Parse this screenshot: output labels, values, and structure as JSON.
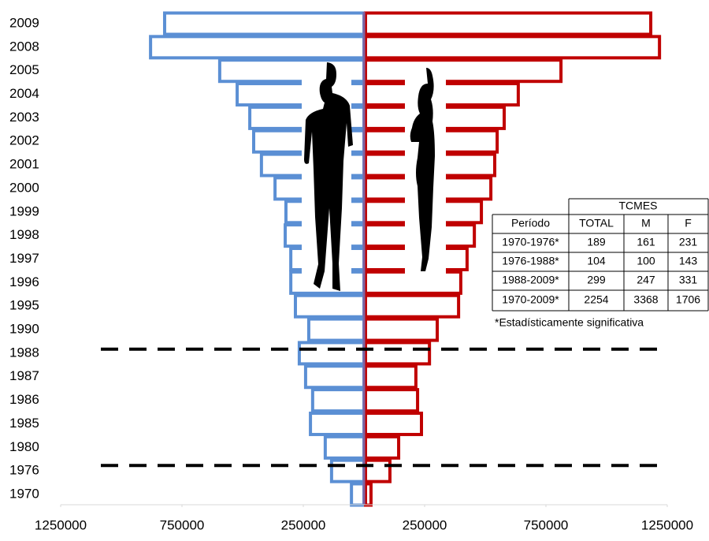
{
  "chart_data": {
    "type": "butterfly",
    "categories": [
      "1970",
      "1976",
      "1980",
      "1985",
      "1986",
      "1987",
      "1988",
      "1990",
      "1995",
      "1996",
      "1997",
      "1998",
      "1999",
      "2000",
      "2001",
      "2002",
      "2003",
      "2004",
      "2005",
      "2008",
      "2009"
    ],
    "series": [
      {
        "color": "#5b8fd4",
        "values": [
          -58000,
          -140000,
          -166000,
          -227000,
          -218000,
          -247000,
          -273000,
          -234000,
          -289000,
          -308000,
          -308000,
          -331000,
          -328000,
          -373000,
          -429000,
          -461000,
          -477000,
          -529000,
          -601000,
          -886000,
          -828000
        ]
      },
      {
        "color": "#c00000",
        "values": [
          29000,
          107000,
          143000,
          237000,
          221000,
          214000,
          270000,
          302000,
          390000,
          399000,
          425000,
          455000,
          484000,
          523000,
          539000,
          549000,
          578000,
          636000,
          812000,
          1218000,
          1182000
        ]
      }
    ],
    "xlim": [
      -1250000,
      1250000
    ],
    "xticks": [
      {
        "value": -1250000,
        "label": "1250000"
      },
      {
        "value": -750000,
        "label": "750000"
      },
      {
        "value": -250000,
        "label": "250000"
      },
      250000,
      750000,
      1250000
    ],
    "grid": false
  },
  "table": {
    "header": "TCMES",
    "columns": [
      "Período",
      "TOTAL",
      "M",
      "F"
    ],
    "rows": [
      [
        "1970-1976*",
        189,
        161,
        231
      ],
      [
        "1976-1988*",
        104,
        100,
        143
      ],
      [
        "1988-2009*",
        299,
        247,
        331
      ],
      [
        "1970-2009*",
        2254,
        3368,
        1706
      ]
    ],
    "note": "*Estadísticamente significativa"
  }
}
